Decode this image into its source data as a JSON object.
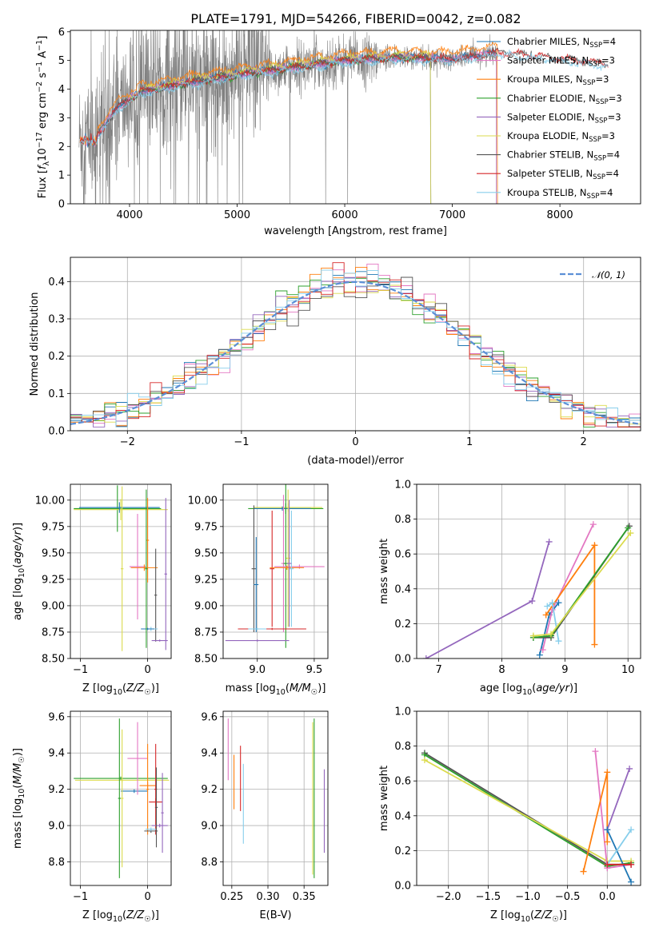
{
  "title": "PLATE=1791, MJD=54266, FIBERID=0042, z=0.082",
  "colors": {
    "chabrier_miles": "#1f77b4",
    "salpeter_miles": "#e377c2",
    "kroupa_miles": "#ff7f0e",
    "chabrier_elodie": "#2ca02c",
    "salpeter_elodie": "#9467bd",
    "kroupa_elodie": "#dbdb4d",
    "chabrier_stelib": "#555555",
    "salpeter_stelib": "#d62728",
    "kroupa_stelib": "#87ceeb",
    "data": "#808080",
    "normal": "#5b8fd6"
  },
  "chart_data": [
    {
      "id": "spectrum",
      "type": "line",
      "title": "PLATE=1791, MJD=54266, FIBERID=0042, z=0.082",
      "xlabel": "wavelength [Angstrom, rest frame]",
      "ylabel": "Flux [f_λ10^−17 erg cm^−2 s^−1 A^−1]",
      "xlim": [
        3450,
        8750
      ],
      "ylim": [
        0,
        6.05
      ],
      "xticks": [
        4000,
        5000,
        6000,
        7000,
        8000
      ],
      "yticks": [
        0,
        1,
        2,
        3,
        4,
        5,
        6
      ],
      "legend_position": "top-right",
      "legend": [
        {
          "label": "Chabrier MILES, N",
          "sub": "SSP",
          "tail": "=4"
        },
        {
          "label": "Salpeter MILES, N",
          "sub": "SSP",
          "tail": "=3"
        },
        {
          "label": "Kroupa MILES, N",
          "sub": "SSP",
          "tail": "=3"
        },
        {
          "label": "Chabrier ELODIE, N",
          "sub": "SSP",
          "tail": "=3"
        },
        {
          "label": "Salpeter ELODIE, N",
          "sub": "SSP",
          "tail": "=3"
        },
        {
          "label": "Kroupa ELODIE, N",
          "sub": "SSP",
          "tail": "=3"
        },
        {
          "label": "Chabrier STELIB, N",
          "sub": "SSP",
          "tail": "=4"
        },
        {
          "label": "Salpeter STELIB, N",
          "sub": "SSP",
          "tail": "=4"
        },
        {
          "label": "Kroupa STELIB, N",
          "sub": "SSP",
          "tail": "=4"
        }
      ],
      "continuum": [
        [
          3530,
          2.3
        ],
        [
          3700,
          2.4
        ],
        [
          3900,
          3.4
        ],
        [
          4100,
          3.9
        ],
        [
          4500,
          4.2
        ],
        [
          5000,
          4.5
        ],
        [
          5500,
          4.75
        ],
        [
          6000,
          5.0
        ],
        [
          6500,
          5.1
        ],
        [
          7000,
          5.05
        ],
        [
          7300,
          5.2
        ],
        [
          7420,
          5.3
        ]
      ]
    },
    {
      "id": "residual_hist",
      "type": "line",
      "xlabel": "(data-model)/error",
      "ylabel": "Normed distribution",
      "xlim": [
        -2.5,
        2.5
      ],
      "ylim": [
        0,
        0.465
      ],
      "xticks": [
        -2,
        -1,
        0,
        1,
        2
      ],
      "yticks": [
        0.0,
        0.1,
        0.2,
        0.3,
        0.4
      ],
      "legend_position": "top-right",
      "legend": [
        "𝒩(0, 1)"
      ],
      "bin_width": 0.1
    },
    {
      "id": "age_vs_Z",
      "type": "scatter",
      "xlabel": "Z [log10(Z/Z☉)]",
      "ylabel": "age [log10(age/yr)]",
      "xlim": [
        -1.15,
        0.35
      ],
      "ylim": [
        8.5,
        10.15
      ],
      "xticks": [
        -1,
        0
      ],
      "yticks": [
        8.5,
        8.75,
        9.0,
        9.25,
        9.5,
        9.75,
        10.0
      ],
      "points": [
        {
          "c": "chabrier_elodie",
          "x": -0.45,
          "xerr": 0.65,
          "y": 9.92,
          "yerr": 0.22
        },
        {
          "c": "kroupa_elodie",
          "x": -0.4,
          "xerr": 0.7,
          "y": 9.91,
          "yerr": 0.1
        },
        {
          "c": "chabrier_miles",
          "x": -0.42,
          "xerr": 0.6,
          "y": 9.93,
          "yerr": 0.05
        },
        {
          "c": "kroupa_elodie",
          "x": -0.38,
          "xerr": 0.02,
          "y": 9.35,
          "yerr": 0.78
        },
        {
          "c": "salpeter_miles",
          "x": -0.15,
          "xerr": 0.12,
          "y": 9.37,
          "yerr": 0.5
        },
        {
          "c": "kroupa_miles",
          "x": -0.05,
          "xerr": 0.2,
          "y": 9.36,
          "yerr": 0.03
        },
        {
          "c": "kroupa_miles",
          "x": 0.0,
          "xerr": 0.02,
          "y": 9.62,
          "yerr": 0.4
        },
        {
          "c": "chabrier_stelib",
          "x": 0.12,
          "xerr": 0.02,
          "y": 9.1,
          "yerr": 0.44
        },
        {
          "c": "kroupa_stelib",
          "x": 0.05,
          "xerr": 0.1,
          "y": 8.78,
          "yerr": 0.02
        },
        {
          "c": "chabrier_miles",
          "x": 0.0,
          "xerr": 0.1,
          "y": 8.78,
          "yerr": 0.01
        },
        {
          "c": "salpeter_elodie",
          "x": 0.18,
          "xerr": 0.12,
          "y": 8.67,
          "yerr": 0.01
        },
        {
          "c": "salpeter_elodie",
          "x": 0.27,
          "xerr": 0.02,
          "y": 9.3,
          "yerr": 0.72
        },
        {
          "c": "chabrier_elodie",
          "x": -0.02,
          "xerr": 0.02,
          "y": 9.35,
          "yerr": 0.75
        }
      ]
    },
    {
      "id": "age_vs_mass",
      "type": "scatter",
      "xlabel": "mass [log10(M/M☉)]",
      "ylabel": "",
      "xlim": [
        8.7,
        9.62
      ],
      "ylim": [
        8.5,
        10.15
      ],
      "xticks": [
        9.0,
        9.5
      ],
      "yticks": [
        8.5,
        8.75,
        9.0,
        9.25,
        9.5,
        9.75,
        10.0
      ],
      "points": [
        {
          "c": "chabrier_elodie",
          "x": 9.25,
          "xerr": 0.33,
          "y": 9.92,
          "yerr": 0.05
        },
        {
          "c": "kroupa_elodie",
          "x": 9.27,
          "xerr": 0.3,
          "y": 9.93,
          "yerr": 0.04
        },
        {
          "c": "chabrier_miles",
          "x": 9.22,
          "xerr": 0.25,
          "y": 9.92,
          "yerr": 0.02
        },
        {
          "c": "chabrier_stelib",
          "x": 8.97,
          "xerr": 0.02,
          "y": 9.35,
          "yerr": 0.6
        },
        {
          "c": "chabrier_miles",
          "x": 8.99,
          "xerr": 0.02,
          "y": 9.2,
          "yerr": 0.45
        },
        {
          "c": "salpeter_stelib",
          "x": 9.13,
          "xerr": 0.02,
          "y": 9.35,
          "yerr": 0.55
        },
        {
          "c": "salpeter_miles",
          "x": 9.23,
          "xerr": 0.02,
          "y": 9.4,
          "yerr": 0.65
        },
        {
          "c": "kroupa_elodie",
          "x": 9.27,
          "xerr": 0.02,
          "y": 9.45,
          "yerr": 0.65
        },
        {
          "c": "chabrier_elodie",
          "x": 9.25,
          "xerr": 0.02,
          "y": 9.4,
          "yerr": 0.8
        },
        {
          "c": "salpeter_miles",
          "x": 9.37,
          "xerr": 0.22,
          "y": 9.37,
          "yerr": 0.02
        },
        {
          "c": "kroupa_miles",
          "x": 9.26,
          "xerr": 0.15,
          "y": 9.36,
          "yerr": 0.02
        },
        {
          "c": "salpeter_stelib",
          "x": 9.13,
          "xerr": 0.3,
          "y": 8.78,
          "yerr": 0.01
        },
        {
          "c": "kroupa_stelib",
          "x": 9.0,
          "xerr": 0.08,
          "y": 8.78,
          "yerr": 0.01
        },
        {
          "c": "salpeter_elodie",
          "x": 9.0,
          "xerr": 0.28,
          "y": 8.67,
          "yerr": 0.01
        },
        {
          "c": "kroupa_stelib",
          "x": 9.3,
          "xerr": 0.02,
          "y": 9.35,
          "yerr": 0.55
        },
        {
          "c": "salpeter_elodie",
          "x": 9.28,
          "xerr": 0.02,
          "y": 9.4,
          "yerr": 0.6
        }
      ]
    },
    {
      "id": "massweight_vs_age",
      "type": "line",
      "xlabel": "age  [log10(age/yr)]",
      "ylabel": "mass weight",
      "xlim": [
        6.65,
        10.2
      ],
      "ylim": [
        0,
        1.0
      ],
      "xticks": [
        7,
        8,
        9,
        10
      ],
      "yticks": [
        0.0,
        0.2,
        0.4,
        0.6,
        0.8,
        1.0
      ],
      "grid": true,
      "series": [
        {
          "c": "salpeter_elodie",
          "x": [
            6.8,
            8.48,
            8.75
          ],
          "y": [
            0.0,
            0.33,
            0.67
          ]
        },
        {
          "c": "chabrier_miles",
          "x": [
            8.6,
            8.75,
            8.9
          ],
          "y": [
            0.02,
            0.25,
            0.32
          ]
        },
        {
          "c": "salpeter_miles",
          "x": [
            8.65,
            8.8,
            9.45
          ],
          "y": [
            0.05,
            0.28,
            0.77
          ]
        },
        {
          "c": "kroupa_miles",
          "x": [
            8.7,
            9.47,
            9.47
          ],
          "y": [
            0.25,
            0.65,
            0.08
          ]
        },
        {
          "c": "kroupa_stelib",
          "x": [
            8.72,
            8.8,
            8.9
          ],
          "y": [
            0.3,
            0.32,
            0.1
          ]
        },
        {
          "c": "chabrier_stelib",
          "x": [
            8.5,
            8.78,
            10.02
          ],
          "y": [
            0.12,
            0.12,
            0.76
          ]
        },
        {
          "c": "chabrier_elodie",
          "x": [
            8.5,
            8.78,
            10.0
          ],
          "y": [
            0.12,
            0.13,
            0.75
          ]
        },
        {
          "c": "kroupa_elodie",
          "x": [
            8.5,
            8.78,
            10.04
          ],
          "y": [
            0.13,
            0.14,
            0.72
          ]
        }
      ]
    },
    {
      "id": "mass_vs_Z",
      "type": "scatter",
      "xlabel": "Z [log10(Z/Z☉)]",
      "ylabel": "mass [log10(M/M☉)]",
      "xlim": [
        -1.15,
        0.35
      ],
      "ylim": [
        8.67,
        9.63
      ],
      "xticks": [
        -1,
        0
      ],
      "yticks": [
        8.8,
        9.0,
        9.2,
        9.4,
        9.6
      ],
      "points": [
        {
          "c": "chabrier_elodie",
          "x": -0.4,
          "xerr": 0.7,
          "y": 9.26,
          "yerr": 0.01
        },
        {
          "c": "kroupa_elodie",
          "x": -0.38,
          "xerr": 0.7,
          "y": 9.25,
          "yerr": 0.01
        },
        {
          "c": "chabrier_miles",
          "x": -0.2,
          "xerr": 0.2,
          "y": 9.19,
          "yerr": 0.01
        },
        {
          "c": "chabrier_elodie",
          "x": -0.42,
          "xerr": 0.02,
          "y": 9.15,
          "yerr": 0.44
        },
        {
          "c": "kroupa_elodie",
          "x": -0.38,
          "xerr": 0.02,
          "y": 9.15,
          "yerr": 0.38
        },
        {
          "c": "salpeter_miles",
          "x": -0.15,
          "xerr": 0.15,
          "y": 9.37,
          "yerr": 0.2
        },
        {
          "c": "kroupa_miles",
          "x": 0.0,
          "xerr": 0.12,
          "y": 9.22,
          "yerr": 0.02
        },
        {
          "c": "kroupa_miles",
          "x": 0.0,
          "xerr": 0.02,
          "y": 9.2,
          "yerr": 0.25
        },
        {
          "c": "salpeter_stelib",
          "x": 0.12,
          "xerr": 0.1,
          "y": 9.13,
          "yerr": 0.02
        },
        {
          "c": "salpeter_stelib",
          "x": 0.12,
          "xerr": 0.02,
          "y": 9.2,
          "yerr": 0.25
        },
        {
          "c": "chabrier_stelib",
          "x": 0.05,
          "xerr": 0.1,
          "y": 8.97,
          "yerr": 0.01
        },
        {
          "c": "kroupa_stelib",
          "x": 0.05,
          "xerr": 0.08,
          "y": 8.98,
          "yerr": 0.01
        },
        {
          "c": "salpeter_elodie",
          "x": 0.18,
          "xerr": 0.12,
          "y": 9.0,
          "yerr": 0.01
        },
        {
          "c": "salpeter_elodie",
          "x": 0.22,
          "xerr": 0.02,
          "y": 9.07,
          "yerr": 0.22
        },
        {
          "c": "chabrier_stelib",
          "x": 0.13,
          "xerr": 0.02,
          "y": 9.1,
          "yerr": 0.22
        }
      ]
    },
    {
      "id": "mass_vs_ebv",
      "type": "scatter",
      "xlabel": "E(B-V)",
      "ylabel": "",
      "xlim": [
        0.238,
        0.383
      ],
      "ylim": [
        8.67,
        9.63
      ],
      "xticks": [
        0.25,
        0.3,
        0.35
      ],
      "yticks": [
        8.8,
        9.0,
        9.2,
        9.4,
        9.6
      ],
      "points": [
        {
          "c": "salpeter_miles",
          "x": 0.245,
          "xerr": 0.0,
          "y": 9.42,
          "yerr": 0.17
        },
        {
          "c": "kroupa_miles",
          "x": 0.253,
          "xerr": 0.0,
          "y": 9.24,
          "yerr": 0.15
        },
        {
          "c": "salpeter_stelib",
          "x": 0.262,
          "xerr": 0.0,
          "y": 9.26,
          "yerr": 0.18
        },
        {
          "c": "kroupa_stelib",
          "x": 0.266,
          "xerr": 0.0,
          "y": 9.12,
          "yerr": 0.22
        },
        {
          "c": "chabrier_elodie",
          "x": 0.364,
          "xerr": 0.0,
          "y": 9.15,
          "yerr": 0.44
        },
        {
          "c": "kroupa_elodie",
          "x": 0.362,
          "xerr": 0.0,
          "y": 9.15,
          "yerr": 0.42
        },
        {
          "c": "salpeter_elodie",
          "x": 0.378,
          "xerr": 0.0,
          "y": 9.08,
          "yerr": 0.23
        }
      ]
    },
    {
      "id": "massweight_vs_Z",
      "type": "line",
      "xlabel": "Z [log10(Z/Z☉)]",
      "ylabel": "mass weight",
      "xlim": [
        -2.4,
        0.42
      ],
      "ylim": [
        0,
        1.0
      ],
      "xticks": [
        -2.0,
        -1.5,
        -1.0,
        -0.5,
        0.0
      ],
      "yticks": [
        0.0,
        0.2,
        0.4,
        0.6,
        0.8,
        1.0
      ],
      "grid": true,
      "series": [
        {
          "c": "chabrier_stelib",
          "x": [
            -2.3,
            0.0,
            0.3
          ],
          "y": [
            0.76,
            0.12,
            0.12
          ]
        },
        {
          "c": "chabrier_elodie",
          "x": [
            -2.3,
            0.0,
            0.3
          ],
          "y": [
            0.75,
            0.11,
            0.13
          ]
        },
        {
          "c": "kroupa_elodie",
          "x": [
            -2.3,
            0.0,
            0.3
          ],
          "y": [
            0.72,
            0.14,
            0.14
          ]
        },
        {
          "c": "salpeter_miles",
          "x": [
            -0.15,
            0.0,
            0.3
          ],
          "y": [
            0.77,
            0.1,
            0.12
          ]
        },
        {
          "c": "kroupa_miles",
          "x": [
            -0.3,
            0.0,
            0.0
          ],
          "y": [
            0.08,
            0.65,
            0.25
          ]
        },
        {
          "c": "salpeter_elodie",
          "x": [
            0.0,
            0.28
          ],
          "y": [
            0.32,
            0.67
          ]
        },
        {
          "c": "chabrier_miles",
          "x": [
            0.0,
            0.3
          ],
          "y": [
            0.32,
            0.02
          ]
        },
        {
          "c": "kroupa_stelib",
          "x": [
            0.0,
            0.3
          ],
          "y": [
            0.12,
            0.32
          ]
        },
        {
          "c": "salpeter_stelib",
          "x": [
            0.0,
            0.3
          ],
          "y": [
            0.12,
            0.12
          ]
        }
      ]
    }
  ]
}
